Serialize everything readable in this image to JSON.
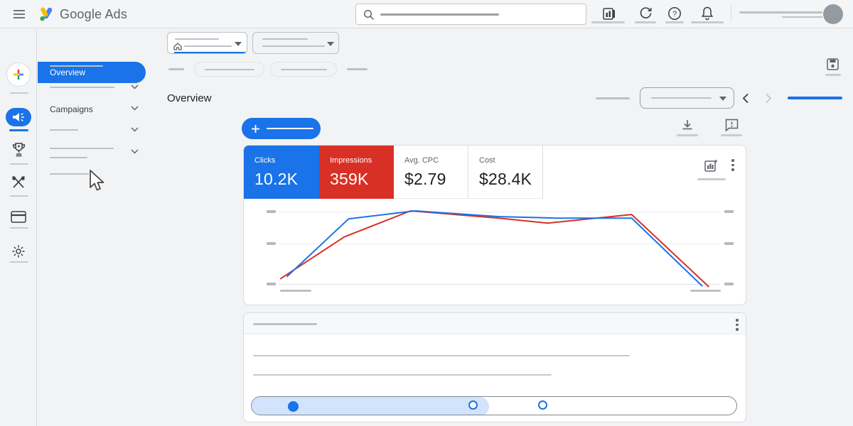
{
  "colors": {
    "brand_blue": "#1a73e8",
    "metric_red": "#d93025",
    "progress_light_blue": "#d2e3fc",
    "placeholder_gray": "#bdc1c6"
  },
  "topbar": {
    "app_name": "Google Ads",
    "icons": [
      "menu-icon",
      "google-ads-logo",
      "search-icon",
      "insights-icon",
      "refresh-icon",
      "help-icon",
      "notifications-icon",
      "avatar"
    ],
    "search_value": ""
  },
  "rail": {
    "selected": "campaigns",
    "icons": [
      "create-plus-icon",
      "campaigns-megaphone-icon",
      "goals-trophy-icon",
      "tools-icon",
      "billing-icon",
      "settings-gear-icon"
    ]
  },
  "sidebar": {
    "nav": [
      {
        "label": "Overview",
        "selected": true
      },
      {
        "label": "",
        "redacted": true
      },
      {
        "label": "",
        "redacted": true,
        "expandable": true
      },
      {
        "label": "Campaigns",
        "expandable": true
      },
      {
        "label": "",
        "redacted": true,
        "expandable": true
      },
      {
        "label": "",
        "redacted": true,
        "expandable": true
      },
      {
        "label": "",
        "redacted": true,
        "hovered": true
      }
    ]
  },
  "main": {
    "page_title": "Overview",
    "scorecards": [
      {
        "label": "Clicks",
        "value": "10.2K",
        "bg": "#1a73e8",
        "fg": "#ffffff",
        "selected": true
      },
      {
        "label": "Impressions",
        "value": "359K",
        "bg": "#d93025",
        "fg": "#ffffff",
        "selected": true
      },
      {
        "label": "Avg. CPC",
        "value": "$2.79",
        "bg": "#ffffff",
        "fg": "#202124",
        "selected": false
      },
      {
        "label": "Cost",
        "value": "$28.4K",
        "bg": "#ffffff",
        "fg": "#202124",
        "selected": false
      }
    ],
    "carousel": {
      "steps": 3,
      "active_step": 1,
      "progress_pct": 49
    }
  },
  "chart_data": {
    "type": "line",
    "title": "",
    "x_axis": {
      "tick_labels_redacted": true
    },
    "y_axis": {
      "tick_labels_redacted": true,
      "gridlines": 3,
      "ticks_both_sides": true
    },
    "legend_position": "scorecards-above",
    "series": [
      {
        "name": "Clicks",
        "color": "#1a73e8",
        "points_pct": [
          [
            2,
            10
          ],
          [
            16,
            90
          ],
          [
            31,
            101
          ],
          [
            50,
            93
          ],
          [
            63,
            91
          ],
          [
            80,
            91
          ],
          [
            96,
            -3
          ]
        ]
      },
      {
        "name": "Impressions",
        "color": "#d93025",
        "points_pct": [
          [
            0.5,
            7
          ],
          [
            15,
            65
          ],
          [
            30,
            101
          ],
          [
            50,
            91
          ],
          [
            61,
            84
          ],
          [
            80,
            96
          ],
          [
            97.5,
            -4
          ]
        ]
      }
    ],
    "note": "axis tick labels shown as redacted gray bars; y values are percent of plot height above bottom gridline"
  }
}
